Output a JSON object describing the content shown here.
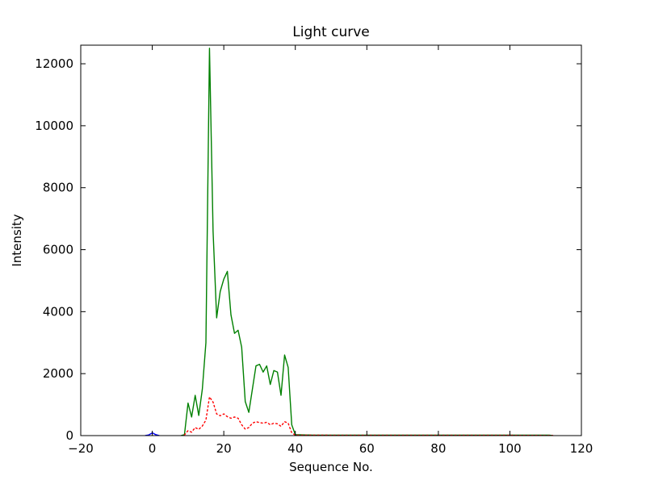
{
  "chart_data": {
    "type": "line",
    "title": "Light curve",
    "xlabel": "Sequence No.",
    "ylabel": "Intensity",
    "xlim": [
      -20,
      120
    ],
    "ylim": [
      0,
      12600
    ],
    "xticks": [
      -20,
      0,
      20,
      40,
      60,
      80,
      100,
      120
    ],
    "yticks": [
      0,
      2000,
      4000,
      6000,
      8000,
      10000,
      12000
    ],
    "grid": false,
    "legend_position": "none",
    "background_color": "#ffffff",
    "axes_color": "#000000",
    "series": [
      {
        "name": "green-solid-curve",
        "color": "#008000",
        "style": "solid",
        "points": [
          [
            8,
            0
          ],
          [
            9,
            30
          ],
          [
            10,
            1050
          ],
          [
            11,
            600
          ],
          [
            12,
            1300
          ],
          [
            13,
            650
          ],
          [
            14,
            1500
          ],
          [
            15,
            3000
          ],
          [
            16,
            12500
          ],
          [
            17,
            6600
          ],
          [
            18,
            3800
          ],
          [
            19,
            4650
          ],
          [
            20,
            5050
          ],
          [
            21,
            5300
          ],
          [
            22,
            3900
          ],
          [
            23,
            3300
          ],
          [
            24,
            3400
          ],
          [
            25,
            2850
          ],
          [
            26,
            1100
          ],
          [
            27,
            750
          ],
          [
            28,
            1500
          ],
          [
            29,
            2250
          ],
          [
            30,
            2300
          ],
          [
            31,
            2050
          ],
          [
            32,
            2250
          ],
          [
            33,
            1650
          ],
          [
            34,
            2100
          ],
          [
            35,
            2050
          ],
          [
            36,
            1300
          ],
          [
            37,
            2600
          ],
          [
            38,
            2200
          ],
          [
            39,
            350
          ],
          [
            40,
            30
          ],
          [
            45,
            15
          ],
          [
            60,
            15
          ],
          [
            80,
            15
          ],
          [
            100,
            15
          ],
          [
            111,
            15
          ],
          [
            112,
            0
          ]
        ]
      },
      {
        "name": "red-dotted-curve",
        "color": "#ff0000",
        "style": "dotted",
        "points": [
          [
            9,
            20
          ],
          [
            10,
            160
          ],
          [
            11,
            110
          ],
          [
            12,
            260
          ],
          [
            13,
            200
          ],
          [
            14,
            310
          ],
          [
            15,
            500
          ],
          [
            16,
            1250
          ],
          [
            17,
            1080
          ],
          [
            18,
            700
          ],
          [
            19,
            640
          ],
          [
            20,
            700
          ],
          [
            21,
            610
          ],
          [
            22,
            560
          ],
          [
            23,
            600
          ],
          [
            24,
            560
          ],
          [
            25,
            350
          ],
          [
            26,
            210
          ],
          [
            27,
            260
          ],
          [
            28,
            400
          ],
          [
            29,
            450
          ],
          [
            30,
            420
          ],
          [
            31,
            400
          ],
          [
            32,
            430
          ],
          [
            33,
            350
          ],
          [
            34,
            400
          ],
          [
            35,
            380
          ],
          [
            36,
            300
          ],
          [
            37,
            450
          ],
          [
            38,
            400
          ],
          [
            39,
            90
          ],
          [
            40,
            15
          ],
          [
            60,
            10
          ],
          [
            80,
            10
          ],
          [
            100,
            10
          ],
          [
            112,
            5
          ]
        ]
      },
      {
        "name": "blue-baseline-blip",
        "color": "#0000ff",
        "style": "solid",
        "points": [
          [
            -2,
            0
          ],
          [
            -1,
            20
          ],
          [
            0,
            90
          ],
          [
            1,
            30
          ],
          [
            2,
            0
          ]
        ]
      }
    ]
  }
}
